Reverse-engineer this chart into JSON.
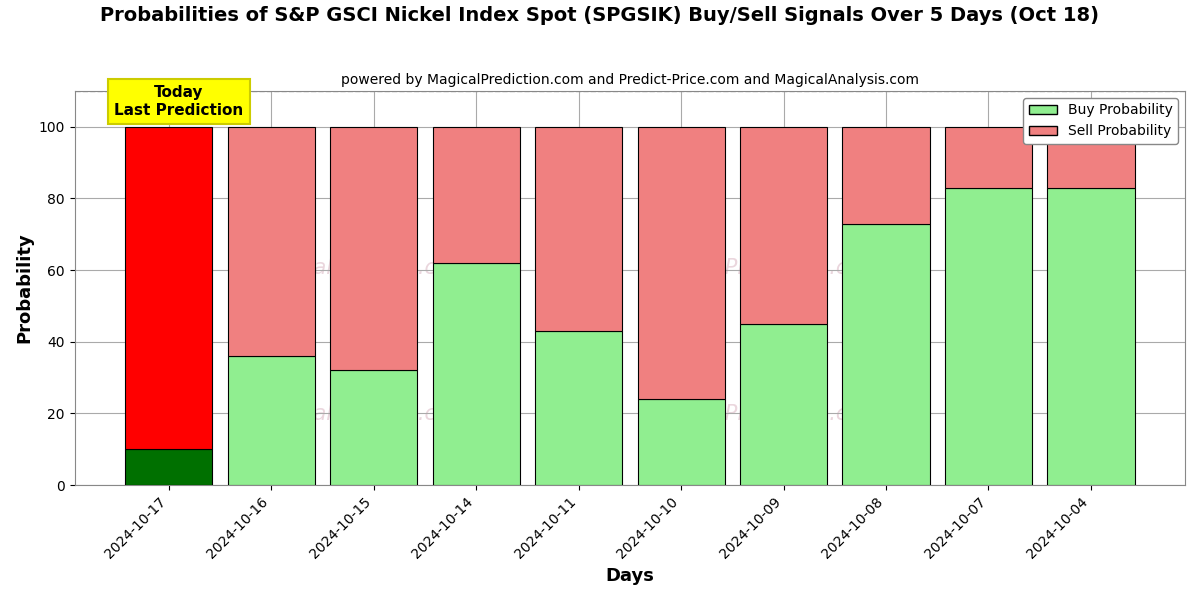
{
  "title": "Probabilities of S&P GSCI Nickel Index Spot (SPGSIK) Buy/Sell Signals Over 5 Days (Oct 18)",
  "subtitle": "powered by MagicalPrediction.com and Predict-Price.com and MagicalAnalysis.com",
  "xlabel": "Days",
  "ylabel": "Probability",
  "categories": [
    "2024-10-17",
    "2024-10-16",
    "2024-10-15",
    "2024-10-14",
    "2024-10-11",
    "2024-10-10",
    "2024-10-09",
    "2024-10-08",
    "2024-10-07",
    "2024-10-04"
  ],
  "buy_values": [
    10,
    36,
    32,
    62,
    43,
    24,
    45,
    73,
    83,
    83
  ],
  "sell_values": [
    90,
    64,
    68,
    38,
    57,
    76,
    55,
    27,
    17,
    17
  ],
  "today_buy_color": "#007000",
  "today_sell_color": "#ff0000",
  "buy_color": "#90ee90",
  "sell_color": "#f08080",
  "today_annotation_text": "Today\nLast Prediction",
  "today_annotation_bg": "#ffff00",
  "legend_buy_label": "Buy Probability",
  "legend_sell_label": "Sell Probability",
  "ylim": [
    0,
    110
  ],
  "yticks": [
    0,
    20,
    40,
    60,
    80,
    100
  ],
  "dashed_line_y": 110,
  "watermark_texts": [
    "calAnalysis.com",
    "MagicalPrediction.com"
  ],
  "bg_color": "#ffffff",
  "grid_color": "#aaaaaa",
  "bar_edge_color": "#000000",
  "figsize": [
    12.0,
    6.0
  ],
  "dpi": 100
}
